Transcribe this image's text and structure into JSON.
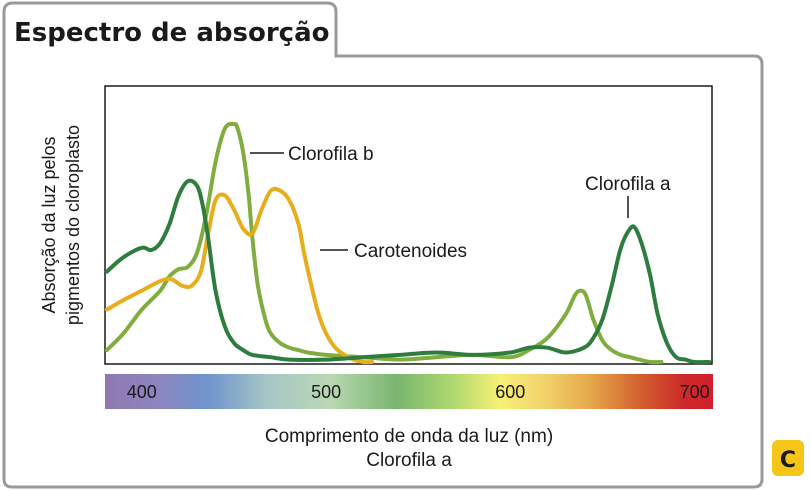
{
  "header": {
    "title": "Espectro de absorção"
  },
  "badge": {
    "label": "C"
  },
  "caption": {
    "line1": "Comprimento de onda da luz (nm)",
    "line2": "Clorofila a"
  },
  "colors": {
    "chlorophyll_a": "#2e7d3e",
    "chlorophyll_b": "#7fae3f",
    "carotenoids": "#e8ad1c",
    "badge": "#f5c518",
    "frame": "#9a9a9a"
  },
  "chart_data": {
    "type": "line",
    "title": "Espectro de absorção",
    "xlabel": "Comprimento de onda da luz (nm)",
    "ylabel": [
      "Absorção da luz pelos",
      "pigmentos do cloroplasto"
    ],
    "xlim": [
      380,
      710
    ],
    "ylim": [
      0,
      100
    ],
    "xticks": [
      400,
      500,
      600,
      700
    ],
    "grid": false,
    "legend": "inline labels",
    "series": [
      {
        "name": "Clorofila a",
        "color": "#2e7d3e",
        "x": [
          381,
          390,
          400,
          405,
          410,
          415,
          420,
          425,
          430,
          433,
          436,
          440,
          445,
          450,
          455,
          460,
          470,
          480,
          500,
          520,
          540,
          560,
          580,
          600,
          610,
          620,
          630,
          640,
          645,
          650,
          655,
          660,
          665,
          668,
          672,
          676,
          680,
          685,
          690,
          695,
          700,
          708
        ],
        "y": [
          38,
          44,
          48,
          47,
          50,
          58,
          70,
          76,
          74,
          66,
          52,
          30,
          15,
          8,
          5,
          3,
          2,
          1,
          1,
          2,
          3,
          4,
          3,
          4,
          6,
          6,
          4,
          6,
          10,
          18,
          32,
          48,
          56,
          56,
          48,
          36,
          20,
          8,
          2,
          1,
          0,
          0
        ]
      },
      {
        "name": "Clorofila b",
        "color": "#7fae3f",
        "x": [
          381,
          390,
          400,
          410,
          415,
          420,
          425,
          430,
          435,
          440,
          445,
          450,
          452,
          455,
          458,
          460,
          463,
          467,
          470,
          475,
          480,
          485,
          490,
          500,
          520,
          540,
          560,
          580,
          600,
          610,
          620,
          630,
          635,
          638,
          641,
          645,
          650,
          655,
          660,
          665,
          670,
          676,
          682
        ],
        "y": [
          5,
          12,
          22,
          30,
          36,
          39,
          40,
          46,
          62,
          84,
          98,
          100,
          98,
          88,
          70,
          52,
          32,
          18,
          12,
          8,
          6,
          5,
          4,
          3,
          2,
          1,
          2,
          3,
          2,
          5,
          10,
          20,
          28,
          30,
          28,
          18,
          9,
          5,
          3,
          2,
          1,
          0,
          0
        ]
      },
      {
        "name": "Carotenoides",
        "color": "#e8ad1c",
        "x": [
          381,
          390,
          400,
          410,
          415,
          418,
          422,
          427,
          432,
          436,
          440,
          445,
          450,
          455,
          460,
          465,
          470,
          475,
          480,
          485,
          488,
          492,
          496,
          500,
          505,
          510,
          515,
          520,
          525
        ],
        "y": [
          22,
          26,
          30,
          34,
          35,
          34,
          32,
          32,
          38,
          54,
          68,
          70,
          64,
          56,
          54,
          64,
          72,
          72,
          68,
          58,
          46,
          32,
          20,
          12,
          6,
          3,
          1,
          0,
          0
        ]
      }
    ],
    "annotations": [
      "Clorofila b",
      "Carotenoides",
      "Clorofila a"
    ]
  }
}
